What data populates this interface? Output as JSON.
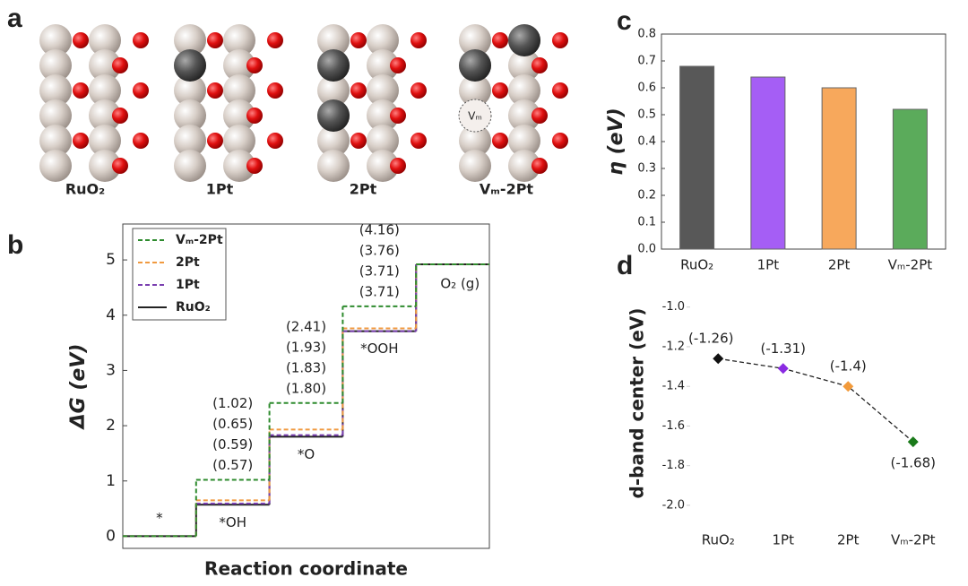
{
  "structures": {
    "panel_label": "a",
    "labels": [
      "RuO₂",
      "1Pt",
      "2Pt",
      "Vₘ-2Pt"
    ],
    "vacancy_label": "Vₘ"
  },
  "chart_data": [
    {
      "type": "step",
      "panel_label": "b",
      "xlabel": "Reaction coordinate",
      "ylabel": "ΔG (eV)",
      "categories": [
        "*",
        "*OH",
        "*O",
        "*OOH",
        "O₂ (g)"
      ],
      "ylim": [
        -0.22,
        5.65
      ],
      "yticks": [
        0,
        1,
        2,
        3,
        4,
        5
      ],
      "legend": "upper left",
      "series": [
        {
          "name": "Vₘ-2Pt",
          "color": "#2e8b2e",
          "dashed": true,
          "values": [
            0,
            1.02,
            2.41,
            4.16,
            4.92
          ],
          "value_labels": [
            null,
            "(1.02)",
            "(2.41)",
            "(4.16)",
            null
          ]
        },
        {
          "name": "2Pt",
          "color": "#f09a40",
          "dashed": true,
          "values": [
            0,
            0.65,
            1.93,
            3.76,
            4.92
          ],
          "value_labels": [
            null,
            "(0.65)",
            "(1.93)",
            "(3.76)",
            null
          ]
        },
        {
          "name": "1Pt",
          "color": "#7a3fb0",
          "dashed": true,
          "values": [
            0,
            0.59,
            1.83,
            3.71,
            4.92
          ],
          "value_labels": [
            null,
            "(0.59)",
            "(1.83)",
            "(3.71)",
            null
          ]
        },
        {
          "name": "RuO₂",
          "color": "#222222",
          "dashed": false,
          "values": [
            0,
            0.57,
            1.8,
            3.71,
            4.92
          ],
          "value_labels": [
            null,
            "(0.57)",
            "(1.80)",
            "(3.71)",
            null
          ]
        }
      ]
    },
    {
      "type": "bar",
      "panel_label": "c",
      "ylabel": "η (eV)",
      "categories": [
        "RuO₂",
        "1Pt",
        "2Pt",
        "Vₘ-2Pt"
      ],
      "values": [
        0.68,
        0.64,
        0.6,
        0.52
      ],
      "colors": [
        "#585858",
        "#a55ef5",
        "#f7a85c",
        "#5bab5b"
      ],
      "ylim": [
        0,
        0.8
      ],
      "yticks": [
        {
          "value": 0,
          "label": "0.0"
        },
        0.1,
        0.2,
        0.3,
        0.4,
        0.5,
        0.6,
        0.7,
        0.8
      ]
    },
    {
      "type": "line",
      "panel_label": "d",
      "ylabel": "d-band center (eV)",
      "categories": [
        "RuO₂",
        "1Pt",
        "2Pt",
        "Vₘ-2Pt"
      ],
      "values": [
        -1.26,
        -1.31,
        -1.4,
        -1.68
      ],
      "value_labels": [
        "(-1.26)",
        "(-1.31)",
        "(-1.4)",
        "(-1.68)"
      ],
      "colors": [
        "#111111",
        "#8a2be2",
        "#f29a3a",
        "#1a7a1a"
      ],
      "ylim": [
        -2.05,
        -0.92
      ],
      "yticks": [
        {
          "value": -1.0,
          "label": "-1.0"
        },
        -1.2,
        -1.4,
        -1.6,
        -1.8,
        {
          "value": -2.0,
          "label": "-2.0"
        }
      ]
    }
  ]
}
